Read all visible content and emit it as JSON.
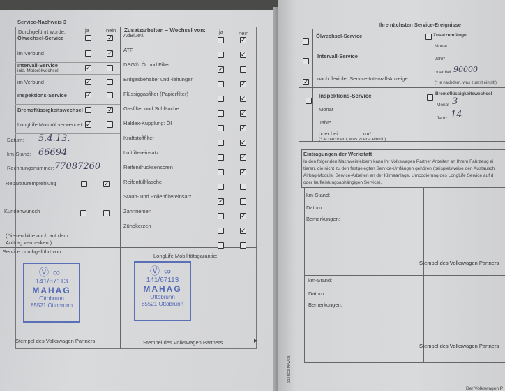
{
  "left": {
    "title": "Service-Nachweis 3",
    "left_header": "Durchgeführt wurde:",
    "right_header": "Zusatzarbeiten – Wechsel von:",
    "ja": "ja",
    "nein": "nein",
    "left_rows": [
      {
        "label": "Ölwechsel-Service",
        "bold": true,
        "state": "nein"
      },
      {
        "label": "im Verbund",
        "state": "nein"
      },
      {
        "label": "Intervall-Service",
        "sub": "inkl. Motorölwechsel",
        "bold": true,
        "state": "ja"
      },
      {
        "label": "im Verbund",
        "state": "ja"
      },
      {
        "label": "Inspektions-Service",
        "bold": true,
        "state": "ja"
      },
      {
        "label": "Bremsflüssigkeitswechsel",
        "bold": true,
        "state": "nein"
      },
      {
        "label": "LongLife Motoröl verwendet",
        "state": "ja"
      }
    ],
    "fields": [
      {
        "label": "Datum:",
        "value": "5.4.13."
      },
      {
        "label": "km-Stand:",
        "value": "66694"
      },
      {
        "label": "Rechnungsnummer:",
        "value": "77087260"
      }
    ],
    "reparatur": {
      "label": "Reparaturempfehlung",
      "state": "nein"
    },
    "kundenwunsch": {
      "label": "Kundenwunsch",
      "state": "none"
    },
    "note": [
      "(Diesen bitte auch auf dem",
      "Auftrag vermerken.)"
    ],
    "right_rows": [
      {
        "label": "AdBlue®",
        "state": "nein"
      },
      {
        "label": "ATF",
        "state": "nein"
      },
      {
        "label": "DSG®: Öl und Filter",
        "state": "ja"
      },
      {
        "label": "Erdgasbehälter und -leitungen",
        "state": "nein"
      },
      {
        "label": "Flüssiggasfilter (Papierfilter)",
        "state": "nein"
      },
      {
        "label": "Gasfilter und Schläuche",
        "state": "nein"
      },
      {
        "label": "Haldex-Kupplung: Öl",
        "state": "nein"
      },
      {
        "label": "Kraftstofffilter",
        "state": "nein"
      },
      {
        "label": "Luftfiltereinsatz",
        "state": "nein"
      },
      {
        "label": "Reifendrucksensoren",
        "state": "nein"
      },
      {
        "label": "Reifenfüllflasche",
        "state": "none"
      },
      {
        "label": "Staub- und Pollenfiltereinsatz",
        "state": "ja"
      },
      {
        "label": "Zahnriemen",
        "state": "nein"
      },
      {
        "label": "Zündkerzen",
        "state": "nein"
      },
      {
        "label": "",
        "state": "none"
      }
    ],
    "service_by": "Service durchgeführt von:",
    "longlife": "LongLife Mobilitätsgarantie:",
    "stamp": {
      "line1": "141/67113",
      "line2": "MAHAG",
      "line3": "Ottobrunn",
      "line4": "85521 Ottobrunn"
    },
    "stamp_label": "Stempel des Volkswagen Partners",
    "stamp_color": "#5468b6"
  },
  "right": {
    "header": "Ihre nächsten Service-Ereignisse",
    "oel": "Ölwechsel-Service",
    "intervall": "Intervall-Service",
    "flexibel": "nach flexibler Service-Intervall-Anzeige",
    "inspektion": "Inspektions-Service",
    "monat": "Monat",
    "jahr": "Jahr*",
    "oder_bei": "oder bei",
    "km": "km*",
    "footnote": "(* je nachdem, was zuerst eintritt)",
    "zusatz": "Zusatzumfänge",
    "zusatz_km": "90000",
    "brems": "Bremsflüssigkeitswechsel",
    "brems_monat": "3",
    "brems_jahr": "14",
    "eintrag_title": "Eintragungen der Werkstatt",
    "eintrag_text": [
      "In den folgenden Nachweisfeldern kann Ihr Volkswagen Partner Arbeiten an Ihrem Fahrzeug ei",
      "tieren, die nicht zu den festgelegten Service-Umfängen gehören (beispielsweise den Austausch",
      "Airbag-Moduls, Service-Arbeiten an der Klimaanlage, Umcodierung des LongLife Service auf d",
      "oder laufleistungsabhängigen Service)."
    ],
    "km_stand": "km-Stand:",
    "datum": "Datum:",
    "bemerkungen": "Bemerkungen:",
    "stamp_label": "Stempel des Volkswagen Partners",
    "code": "312.5G3.PKW.01",
    "bottom": "Der Volkswagen P"
  }
}
